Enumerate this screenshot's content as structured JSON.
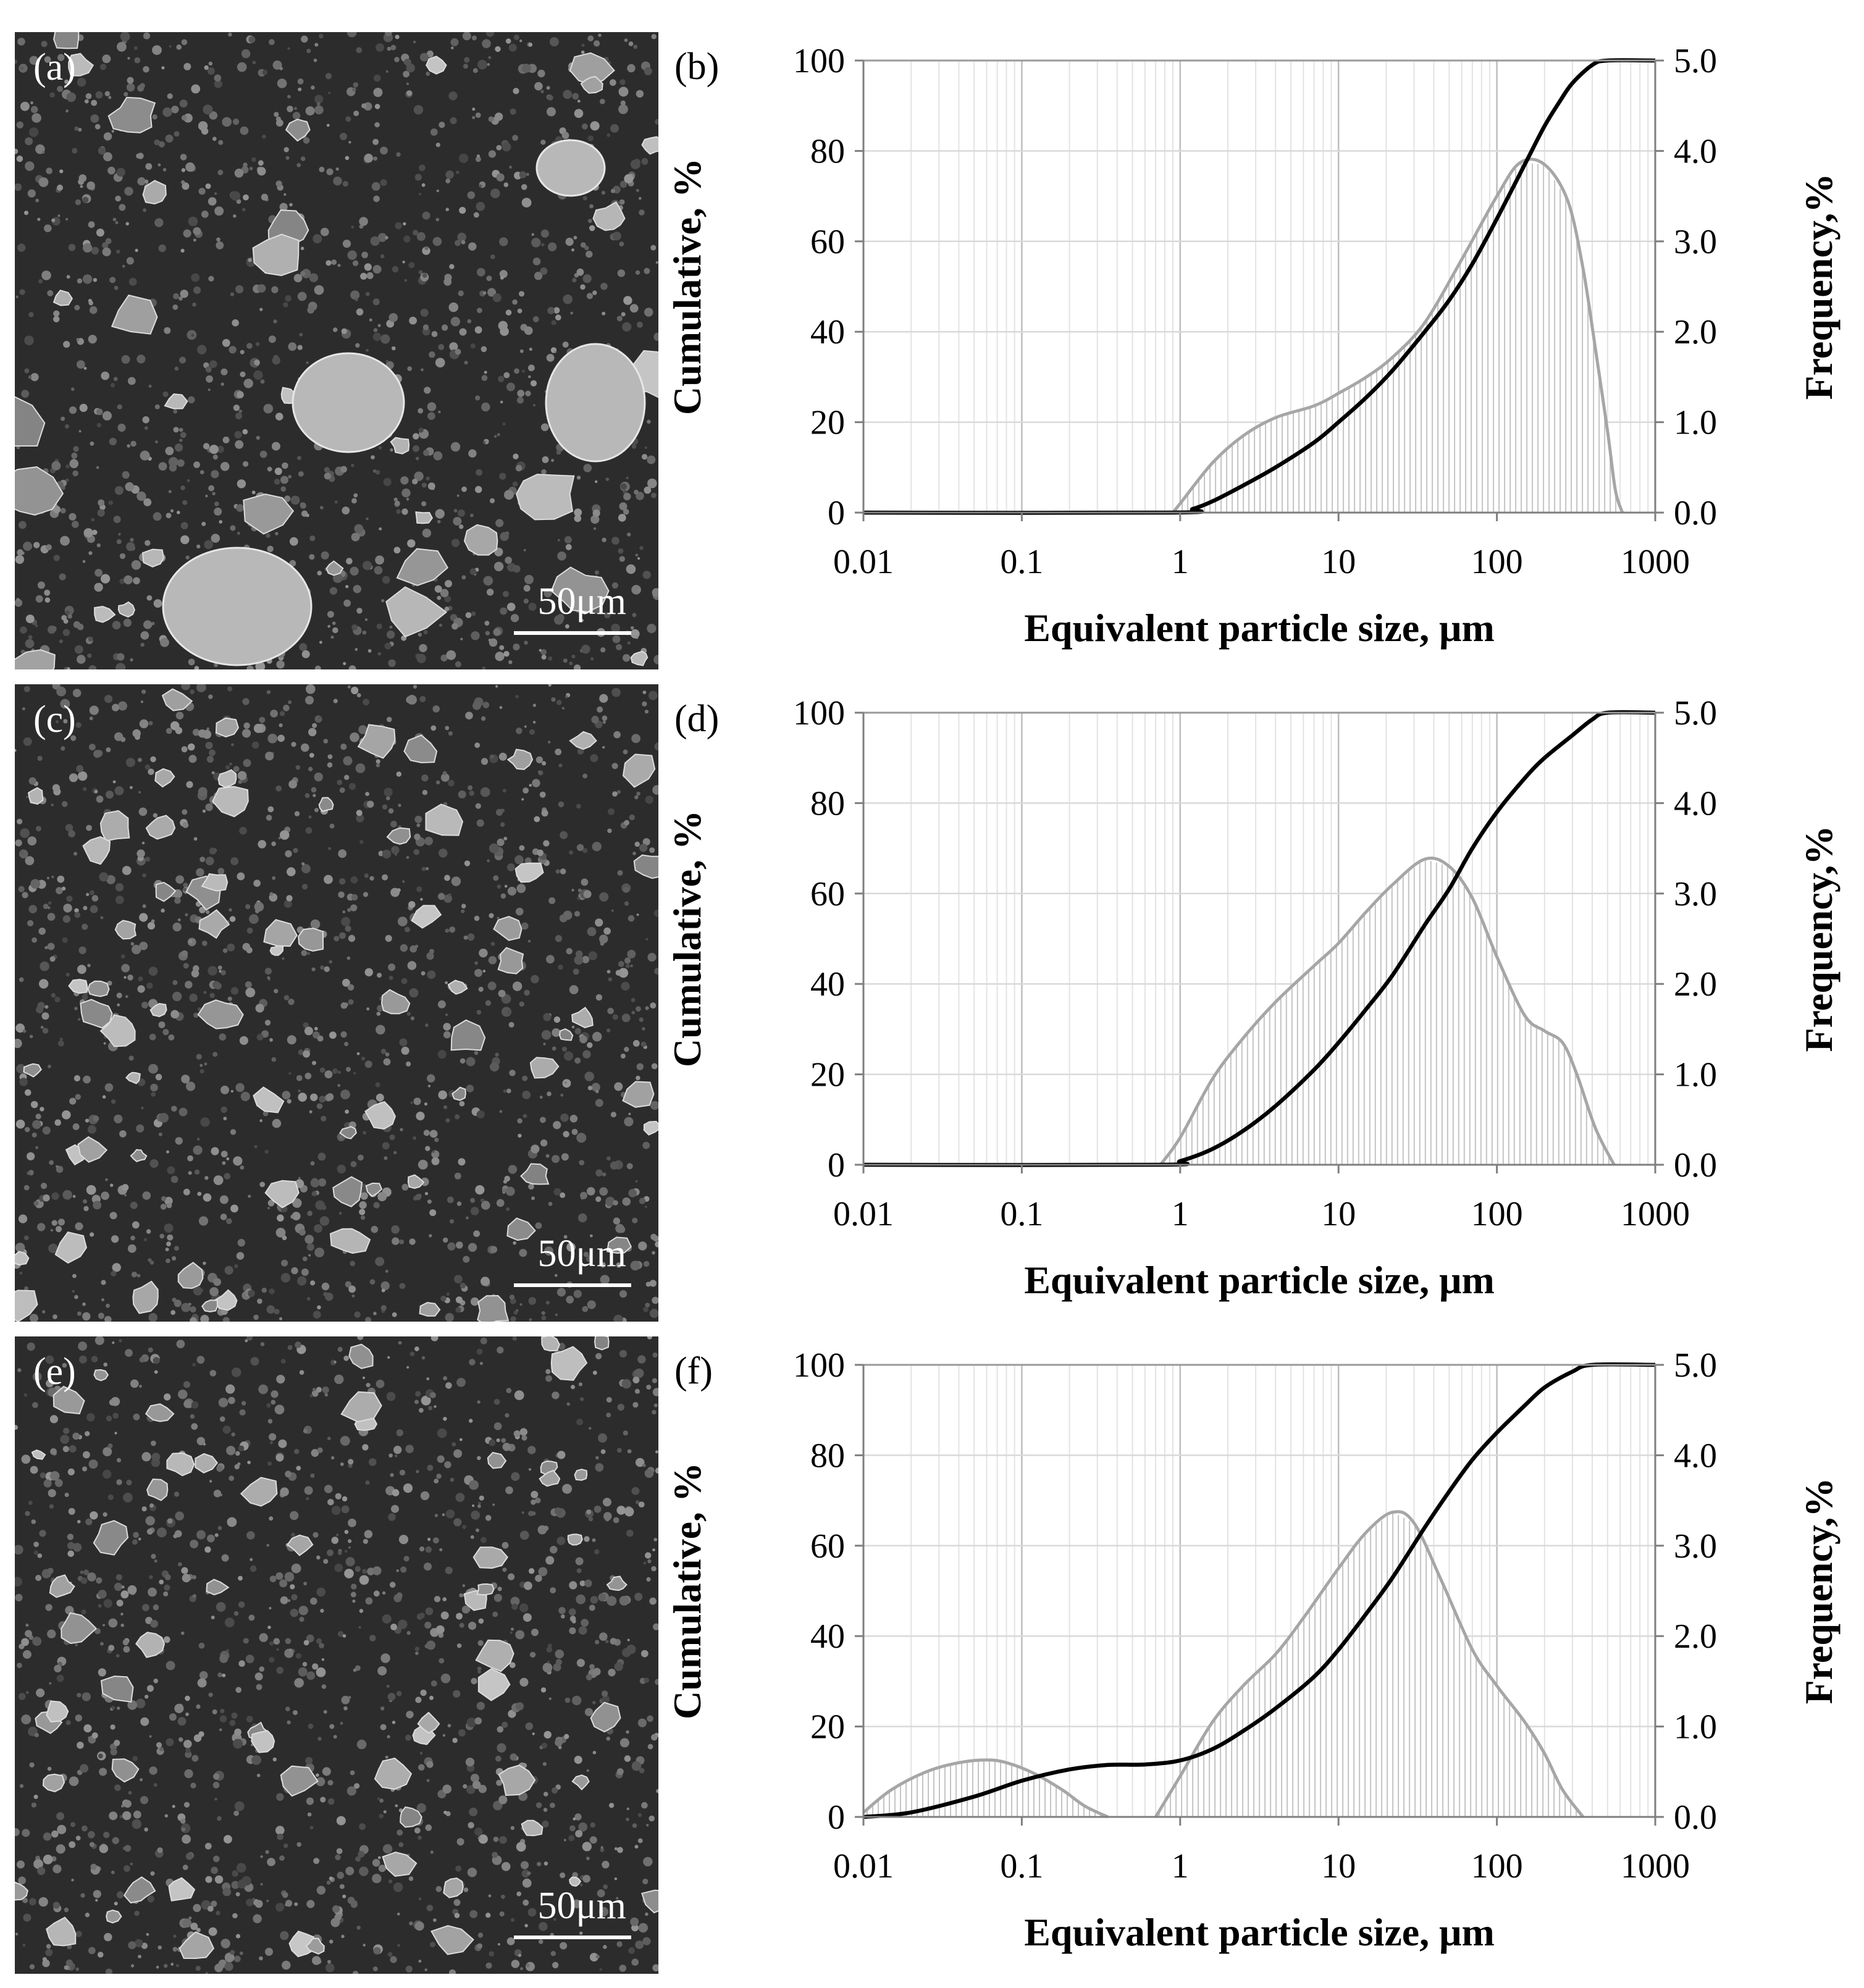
{
  "sem_panels": [
    {
      "label": "(a)",
      "scale_text": "50μm"
    },
    {
      "label": "(c)",
      "scale_text": "50μm"
    },
    {
      "label": "(e)",
      "scale_text": "50μm"
    }
  ],
  "chart_data": [
    {
      "type": "area",
      "panel_label": "(b)",
      "xlabel": "Equivalent particle size, μm",
      "ylabel": "Cumulative, %",
      "y2label": "Frequency,%",
      "x_scale": "log",
      "xlim": [
        0.01,
        1000
      ],
      "ylim": [
        0,
        100
      ],
      "y2lim": [
        0,
        5
      ],
      "x_ticks": [
        "0.01",
        "0.1",
        "1",
        "10",
        "100",
        "1000"
      ],
      "y_ticks": [
        "0",
        "20",
        "40",
        "60",
        "80",
        "100"
      ],
      "y2_ticks": [
        "0.0",
        "1.0",
        "2.0",
        "3.0",
        "4.0",
        "5.0"
      ],
      "grid": true,
      "series": [
        {
          "kind": "frequency",
          "axis": "right",
          "color": "#a6a6a6",
          "x": [
            0.9,
            1.0,
            1.6,
            2.5,
            4,
            7,
            10,
            15,
            22,
            35,
            60,
            100,
            140,
            200,
            280,
            350,
            420,
            500,
            560,
            620
          ],
          "y": [
            0.0,
            0.1,
            0.55,
            0.85,
            1.05,
            1.18,
            1.32,
            1.5,
            1.72,
            2.1,
            2.8,
            3.5,
            3.87,
            3.85,
            3.45,
            2.7,
            1.8,
            0.9,
            0.25,
            0.0
          ]
        },
        {
          "kind": "cumulative",
          "axis": "left",
          "color": "#000000",
          "x": [
            0.01,
            0.9,
            1.2,
            1.6,
            2.5,
            4,
            7,
            10,
            15,
            22,
            35,
            50,
            70,
            100,
            150,
            200,
            250,
            300,
            400,
            500,
            1000
          ],
          "y": [
            0,
            0,
            0.8,
            2.5,
            6,
            10,
            15.5,
            20,
            25.5,
            31.5,
            40,
            47,
            55,
            65,
            77,
            85.5,
            91,
            95,
            99,
            100,
            100
          ]
        }
      ]
    },
    {
      "type": "area",
      "panel_label": "(d)",
      "xlabel": "Equivalent particle size, μm",
      "ylabel": "Cumulative, %",
      "y2label": "Frequency,%",
      "x_scale": "log",
      "xlim": [
        0.01,
        1000
      ],
      "ylim": [
        0,
        100
      ],
      "y2lim": [
        0,
        5
      ],
      "x_ticks": [
        "0.01",
        "0.1",
        "1",
        "10",
        "100",
        "1000"
      ],
      "y_ticks": [
        "0",
        "20",
        "40",
        "60",
        "80",
        "100"
      ],
      "y2_ticks": [
        "0.0",
        "1.0",
        "2.0",
        "3.0",
        "4.0",
        "5.0"
      ],
      "grid": true,
      "series": [
        {
          "kind": "frequency",
          "axis": "right",
          "color": "#a6a6a6",
          "x": [
            0.75,
            1.0,
            1.6,
            2.5,
            4,
            7,
            10,
            15,
            22,
            35,
            50,
            70,
            100,
            150,
            200,
            260,
            320,
            420,
            550
          ],
          "y": [
            0.0,
            0.3,
            0.95,
            1.4,
            1.8,
            2.2,
            2.45,
            2.8,
            3.1,
            3.38,
            3.3,
            2.95,
            2.3,
            1.65,
            1.48,
            1.35,
            1.0,
            0.4,
            0.0
          ]
        },
        {
          "kind": "cumulative",
          "axis": "left",
          "color": "#000000",
          "x": [
            0.01,
            0.75,
            1.0,
            1.6,
            2.5,
            4,
            7,
            10,
            15,
            22,
            35,
            50,
            70,
            100,
            150,
            200,
            300,
            400,
            500,
            1000
          ],
          "y": [
            0,
            0,
            0.8,
            3.5,
            7.5,
            13,
            21,
            27,
            34.5,
            42,
            53,
            61,
            70,
            78,
            85.5,
            90,
            95,
            98.5,
            100,
            100
          ]
        }
      ]
    },
    {
      "type": "area",
      "panel_label": "(f)",
      "xlabel": "Equivalent particle size, μm",
      "ylabel": "Cumulative, %",
      "y2label": "Frequency,%",
      "x_scale": "log",
      "xlim": [
        0.01,
        1000
      ],
      "ylim": [
        0,
        100
      ],
      "y2lim": [
        0,
        5
      ],
      "x_ticks": [
        "0.01",
        "0.1",
        "1",
        "10",
        "100",
        "1000"
      ],
      "y_ticks": [
        "0",
        "20",
        "40",
        "60",
        "80",
        "100"
      ],
      "y2_ticks": [
        "0.0",
        "1.0",
        "2.0",
        "3.0",
        "4.0",
        "5.0"
      ],
      "grid": true,
      "series": [
        {
          "kind": "frequency",
          "axis": "right",
          "color": "#a6a6a6",
          "x": [
            0.01,
            0.015,
            0.025,
            0.04,
            0.06,
            0.08,
            0.12,
            0.18,
            0.25,
            0.35
          ],
          "y": [
            0.05,
            0.3,
            0.5,
            0.6,
            0.63,
            0.6,
            0.48,
            0.3,
            0.12,
            0.0
          ]
        },
        {
          "kind": "frequency",
          "axis": "right",
          "color": "#a6a6a6",
          "x": [
            0.7,
            1.0,
            1.6,
            2.5,
            4,
            6,
            10,
            15,
            22,
            30,
            45,
            70,
            100,
            150,
            200,
            260,
            350
          ],
          "y": [
            0.0,
            0.45,
            1.05,
            1.45,
            1.8,
            2.2,
            2.75,
            3.15,
            3.37,
            3.25,
            2.6,
            1.85,
            1.45,
            1.05,
            0.7,
            0.3,
            0.0
          ]
        },
        {
          "kind": "cumulative",
          "axis": "left",
          "color": "#000000",
          "x": [
            0.01,
            0.02,
            0.05,
            0.1,
            0.2,
            0.35,
            0.6,
            1.0,
            1.6,
            2.5,
            4,
            7,
            10,
            15,
            22,
            35,
            50,
            70,
            100,
            150,
            200,
            300,
            400,
            1000
          ],
          "y": [
            0,
            1,
            4.5,
            8,
            10.5,
            11.5,
            11.6,
            12.5,
            15,
            19,
            24,
            31,
            37,
            45,
            53,
            64,
            72,
            79,
            85,
            91,
            95,
            98.5,
            100,
            100
          ]
        }
      ]
    }
  ]
}
